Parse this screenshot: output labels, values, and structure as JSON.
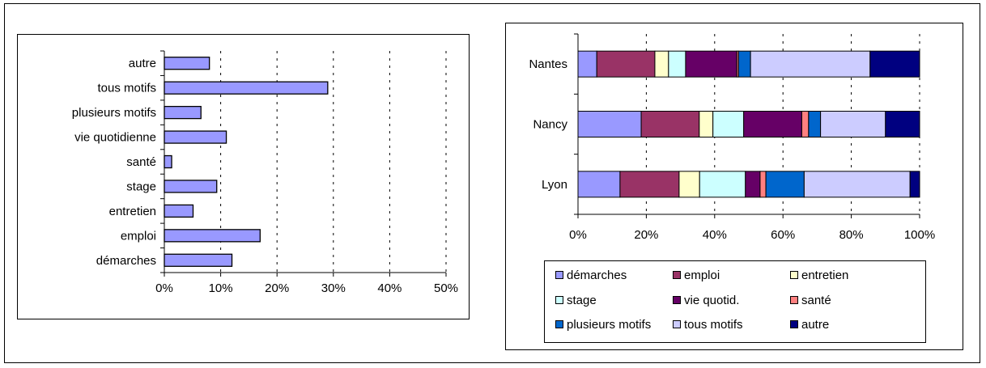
{
  "chart_data": [
    {
      "type": "bar",
      "orientation": "horizontal",
      "categories": [
        "autre",
        "tous motifs",
        "plusieurs motifs",
        "vie quotidienne",
        "santé",
        "stage",
        "entretien",
        "emploi",
        "démarches"
      ],
      "values": [
        8,
        29,
        6.5,
        11,
        1.3,
        9.3,
        5.1,
        17,
        12
      ],
      "unit": "%",
      "xlim": [
        0,
        50
      ],
      "xticks": [
        "0%",
        "10%",
        "20%",
        "30%",
        "40%",
        "50%"
      ],
      "bar_color": "#9999ff",
      "grid": "vertical dashed"
    },
    {
      "type": "bar",
      "orientation": "horizontal",
      "stacked": "100%",
      "categories": [
        "Nantes",
        "Nancy",
        "Lyon"
      ],
      "xticks": [
        "0%",
        "20%",
        "40%",
        "60%",
        "80%",
        "100%"
      ],
      "series": [
        {
          "name": "démarches",
          "color": "#9999ff",
          "values": [
            5.5,
            18.5,
            12.3
          ]
        },
        {
          "name": "emploi",
          "color": "#993366",
          "values": [
            17,
            17,
            17.3
          ]
        },
        {
          "name": "entretien",
          "color": "#ffffcc",
          "values": [
            4,
            4,
            6
          ]
        },
        {
          "name": "stage",
          "color": "#ccffff",
          "values": [
            5,
            9,
            13.4
          ]
        },
        {
          "name": "vie quotid.",
          "color": "#660066",
          "values": [
            15,
            17,
            4.3
          ]
        },
        {
          "name": "santé",
          "color": "#ff8080",
          "values": [
            0.5,
            2,
            1.7
          ]
        },
        {
          "name": "plusieurs motifs",
          "color": "#0066cc",
          "values": [
            3.5,
            3.5,
            11.2
          ]
        },
        {
          "name": "tous motifs",
          "color": "#ccccff",
          "values": [
            35,
            19,
            31
          ]
        },
        {
          "name": "autre",
          "color": "#000080",
          "values": [
            14.5,
            10,
            2.8
          ]
        }
      ],
      "legend_position": "bottom",
      "grid": "vertical dashed"
    }
  ]
}
